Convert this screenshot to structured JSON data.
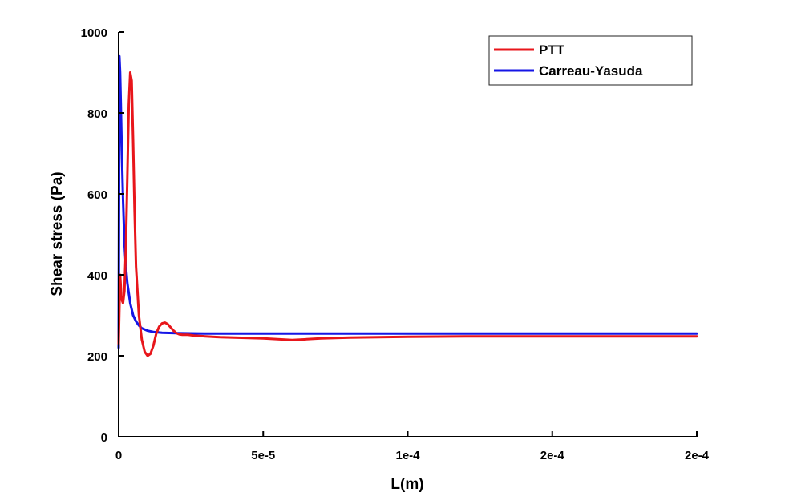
{
  "chart_data": {
    "type": "line",
    "title": "",
    "xlabel": "L(m)",
    "ylabel": "Shear stress (Pa)",
    "xlim": [
      0,
      0.0002
    ],
    "ylim": [
      0,
      1000
    ],
    "x_ticks": [
      {
        "value": 0,
        "label": "0"
      },
      {
        "value": 5e-05,
        "label": "5e-5"
      },
      {
        "value": 0.0001,
        "label": "1e-4"
      },
      {
        "value": 0.00015,
        "label": "2e-4"
      },
      {
        "value": 0.0002,
        "label": "2e-4"
      }
    ],
    "y_ticks": [
      {
        "value": 0,
        "label": "0"
      },
      {
        "value": 200,
        "label": "200"
      },
      {
        "value": 400,
        "label": "400"
      },
      {
        "value": 600,
        "label": "600"
      },
      {
        "value": 800,
        "label": "800"
      },
      {
        "value": 1000,
        "label": "1000"
      }
    ],
    "grid": false,
    "legend_position": "top-right",
    "series": [
      {
        "name": "PTT",
        "color": "#e8161b",
        "x": [
          0,
          5e-07,
          1e-06,
          1.5e-06,
          2e-06,
          2.5e-06,
          3e-06,
          3.5e-06,
          4e-06,
          4.5e-06,
          5e-06,
          5.5e-06,
          6e-06,
          7e-06,
          8e-06,
          9e-06,
          1e-05,
          1.1e-05,
          1.2e-05,
          1.3e-05,
          1.4e-05,
          1.5e-05,
          1.6e-05,
          1.7e-05,
          1.8e-05,
          1.9e-05,
          2e-05,
          2.1e-05,
          2.2e-05,
          2.4e-05,
          2.6e-05,
          2.8e-05,
          3e-05,
          3.5e-05,
          4e-05,
          4.5e-05,
          5e-05,
          5.5e-05,
          6e-05,
          6.5e-05,
          7e-05,
          8e-05,
          9e-05,
          0.0001,
          0.00012,
          0.00014,
          0.00016,
          0.00018,
          0.0002
        ],
        "y": [
          230,
          400,
          340,
          330,
          360,
          470,
          640,
          820,
          900,
          880,
          730,
          560,
          420,
          300,
          240,
          210,
          200,
          205,
          225,
          255,
          272,
          280,
          282,
          278,
          270,
          262,
          256,
          253,
          252,
          252,
          250,
          249,
          248,
          246,
          245,
          244,
          243,
          241,
          239,
          241,
          243,
          245,
          246,
          247,
          248,
          248,
          248,
          248,
          248
        ]
      },
      {
        "name": "Carreau-Yasuda",
        "color": "#1515e6",
        "x": [
          0,
          2.5e-07,
          5e-07,
          7.5e-07,
          1e-06,
          1.5e-06,
          2e-06,
          2.5e-06,
          3e-06,
          4e-06,
          5e-06,
          6e-06,
          7e-06,
          8e-06,
          1e-05,
          1.2e-05,
          1.5e-05,
          2e-05,
          3e-05,
          5e-05,
          0.0001,
          0.00015,
          0.0002
        ],
        "y": [
          220,
          940,
          900,
          820,
          730,
          590,
          480,
          420,
          380,
          330,
          300,
          285,
          275,
          268,
          262,
          259,
          257,
          256,
          255,
          255,
          255,
          255,
          255
        ]
      }
    ]
  }
}
